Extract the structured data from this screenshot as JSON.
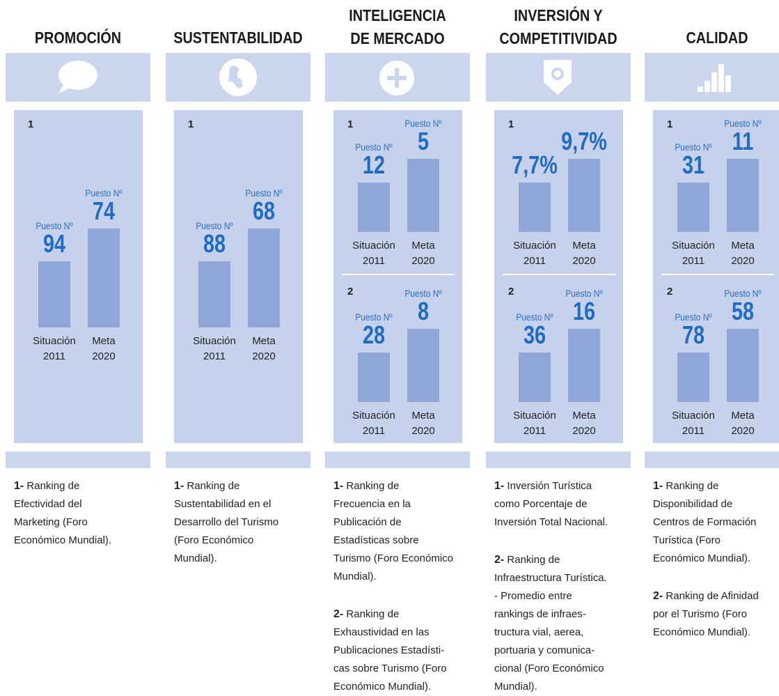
{
  "columns": [
    {
      "title": [
        "PROMOCIÓN"
      ],
      "panels": [
        {
          "index": "1",
          "items": [
            {
              "label": "Puesto Nº",
              "value": "94",
              "caption": [
                "Situación",
                "2011"
              ]
            },
            {
              "label": "Puesto Nº",
              "value": "74",
              "caption": [
                "Meta",
                "2020"
              ]
            }
          ]
        }
      ],
      "notes": [
        {
          "num": "1-",
          "lines": [
            "Ranking de",
            "Efectividad del",
            "Marketing (Foro",
            "Económico Mundial)."
          ]
        }
      ]
    },
    {
      "title": [
        "SUSTENTABILIDAD"
      ],
      "panels": [
        {
          "index": "1",
          "items": [
            {
              "label": "Puesto Nº",
              "value": "88",
              "caption": [
                "Situación",
                "2011"
              ]
            },
            {
              "label": "Puesto Nº",
              "value": "68",
              "caption": [
                "Meta",
                "2020"
              ]
            }
          ]
        }
      ],
      "notes": [
        {
          "num": "1-",
          "lines": [
            "Ranking de",
            "Sustentabilidad en el",
            "Desarrollo del Turismo",
            "(Foro Económico",
            "Mundial)."
          ]
        }
      ]
    },
    {
      "title": [
        "INTELIGENCIA",
        "DE MERCADO"
      ],
      "panels": [
        {
          "index": "1",
          "items": [
            {
              "label": "Puesto Nº",
              "value": "12",
              "caption": [
                "Situación",
                "2011"
              ]
            },
            {
              "label": "Puesto Nº",
              "value": "5",
              "caption": [
                "Meta",
                "2020"
              ]
            }
          ]
        },
        {
          "index": "2",
          "items": [
            {
              "label": "Puesto Nº",
              "value": "28",
              "caption": [
                "Situación",
                "2011"
              ]
            },
            {
              "label": "Puesto Nº",
              "value": "8",
              "caption": [
                "Meta",
                "2020"
              ]
            }
          ]
        }
      ],
      "notes": [
        {
          "num": "1-",
          "lines": [
            "Ranking de",
            "Frecuencia en la",
            "Publicación de",
            "Estadísticas sobre",
            "Turismo (Foro Económico",
            "Mundial)."
          ]
        },
        {
          "num": "2-",
          "lines": [
            "Ranking de",
            "Exhaustividad en las",
            "Publicaciones Estadísti-",
            "cas sobre Turismo (Foro",
            "Económico Mundial)."
          ]
        }
      ]
    },
    {
      "title": [
        "INVERSIÓN Y",
        "COMPETITIVIDAD"
      ],
      "panels": [
        {
          "index": "1",
          "items": [
            {
              "value": "7,7%",
              "caption": [
                "Situación",
                "2011"
              ]
            },
            {
              "value": "9,7%",
              "caption": [
                "Meta",
                "2020"
              ]
            }
          ]
        },
        {
          "index": "2",
          "items": [
            {
              "label": "Puesto Nº",
              "value": "36",
              "caption": [
                "Situación",
                "2011"
              ]
            },
            {
              "label": "Puesto Nº",
              "value": "16",
              "caption": [
                "Meta",
                "2020"
              ]
            }
          ]
        }
      ],
      "notes": [
        {
          "num": "1-",
          "lines": [
            "Inversión Turística",
            "como Porcentaje de",
            "Inversión Total Nacional."
          ]
        },
        {
          "num": "2-",
          "lines": [
            "Ranking de",
            "Infraestructura Turística.",
            "- Promedio entre",
            "rankings de infraes-",
            "tructura vial, aerea,",
            "portuaria y comunica-",
            "cional (Foro Económico",
            "Mundial)."
          ]
        }
      ]
    },
    {
      "title": [
        "CALIDAD"
      ],
      "panels": [
        {
          "index": "1",
          "items": [
            {
              "label": "Puesto Nº",
              "value": "31",
              "caption": [
                "Situación",
                "2011"
              ]
            },
            {
              "label": "Puesto Nº",
              "value": "11",
              "caption": [
                "Meta",
                "2020"
              ]
            }
          ]
        },
        {
          "index": "2",
          "items": [
            {
              "label": "Puesto Nº",
              "value": "78",
              "caption": [
                "Situación",
                "2011"
              ]
            },
            {
              "label": "Puesto Nº",
              "value": "58",
              "caption": [
                "Meta",
                "2020"
              ]
            }
          ]
        }
      ],
      "notes": [
        {
          "num": "1-",
          "lines": [
            "Ranking de",
            "Disponibilidad de",
            "Centros de Formación",
            "Turística (Foro",
            "Económico Mundial)."
          ]
        },
        {
          "num": "2-",
          "lines": [
            "Ranking de Afinidad",
            "por el Turismo (Foro",
            "Económico Mundial)."
          ]
        }
      ]
    }
  ]
}
